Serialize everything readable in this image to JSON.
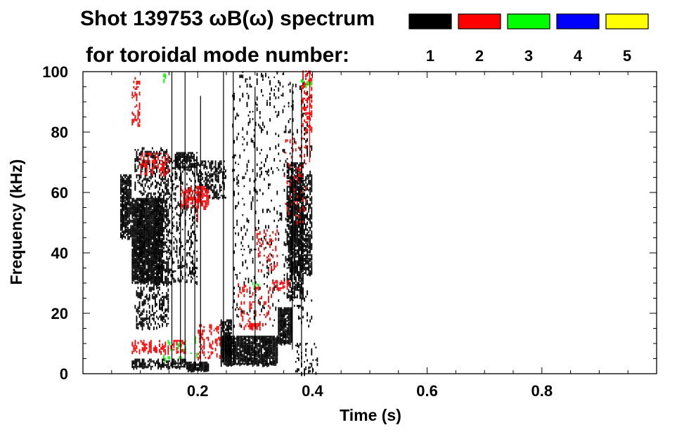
{
  "chart_data": {
    "type": "heatmap",
    "title_line1": "Shot 139753 ωB(ω) spectrum",
    "title_line2": "for toroidal mode number:",
    "xlabel": "Time (s)",
    "ylabel": "Frequency (kHz)",
    "xlim": [
      0.0,
      1.0
    ],
    "ylim": [
      0,
      100
    ],
    "x_ticks": [
      0.2,
      0.4,
      0.6,
      0.8
    ],
    "x_tick_labels": [
      "0.2",
      "0.4",
      "0.6",
      "0.8"
    ],
    "y_ticks": [
      0,
      20,
      40,
      60,
      80,
      100
    ],
    "y_tick_labels": [
      "0",
      "20",
      "40",
      "60",
      "80",
      "100"
    ],
    "legend": [
      {
        "label": "1",
        "color": "#000000"
      },
      {
        "label": "2",
        "color": "#ff0000"
      },
      {
        "label": "3",
        "color": "#00ff00"
      },
      {
        "label": "4",
        "color": "#0000ff"
      },
      {
        "label": "5",
        "color": "#ffff00"
      }
    ],
    "regions": [
      {
        "mode": "1",
        "t0": 0.065,
        "t1": 0.085,
        "f0": 45,
        "f1": 66,
        "density": 0.75
      },
      {
        "mode": "1",
        "t0": 0.085,
        "t1": 0.14,
        "f0": 30,
        "f1": 58,
        "density": 0.85
      },
      {
        "mode": "1",
        "t0": 0.09,
        "t1": 0.15,
        "f0": 15,
        "f1": 75,
        "density": 0.3
      },
      {
        "mode": "1",
        "t0": 0.14,
        "t1": 0.2,
        "f0": 30,
        "f1": 72,
        "density": 0.22
      },
      {
        "mode": "1",
        "t0": 0.16,
        "t1": 0.2,
        "f0": 68,
        "f1": 73,
        "density": 0.6
      },
      {
        "mode": "1",
        "t0": 0.085,
        "t1": 0.18,
        "f0": 2,
        "f1": 5,
        "density": 0.55
      },
      {
        "mode": "1",
        "t0": 0.18,
        "t1": 0.22,
        "f0": 1,
        "f1": 4,
        "density": 0.85
      },
      {
        "mode": "1",
        "t0": 0.2,
        "t1": 0.25,
        "f0": 58,
        "f1": 70,
        "density": 0.45
      },
      {
        "mode": "1",
        "t0": 0.24,
        "t1": 0.34,
        "f0": 3,
        "f1": 12,
        "density": 0.85
      },
      {
        "mode": "1",
        "t0": 0.24,
        "t1": 0.26,
        "f0": 6,
        "f1": 18,
        "density": 0.8
      },
      {
        "mode": "1",
        "t0": 0.26,
        "t1": 0.4,
        "f0": 15,
        "f1": 100,
        "density": 0.06
      },
      {
        "mode": "1",
        "t0": 0.34,
        "t1": 0.365,
        "f0": 10,
        "f1": 22,
        "density": 0.85
      },
      {
        "mode": "1",
        "t0": 0.355,
        "t1": 0.385,
        "f0": 25,
        "f1": 70,
        "density": 0.55
      },
      {
        "mode": "1",
        "t0": 0.36,
        "t1": 0.4,
        "f0": 33,
        "f1": 66,
        "density": 0.5
      },
      {
        "mode": "1",
        "t0": 0.37,
        "t1": 0.41,
        "f0": 0,
        "f1": 10,
        "density": 0.15
      },
      {
        "mode": "2",
        "t0": 0.085,
        "t1": 0.1,
        "f0": 82,
        "f1": 98,
        "density": 0.25
      },
      {
        "mode": "2",
        "t0": 0.1,
        "t1": 0.15,
        "f0": 66,
        "f1": 73,
        "density": 0.35
      },
      {
        "mode": "2",
        "t0": 0.085,
        "t1": 0.18,
        "f0": 7,
        "f1": 11,
        "density": 0.35
      },
      {
        "mode": "2",
        "t0": 0.17,
        "t1": 0.22,
        "f0": 55,
        "f1": 62,
        "density": 0.55
      },
      {
        "mode": "2",
        "t0": 0.2,
        "t1": 0.24,
        "f0": 5,
        "f1": 16,
        "density": 0.2
      },
      {
        "mode": "2",
        "t0": 0.27,
        "t1": 0.33,
        "f0": 15,
        "f1": 30,
        "density": 0.12
      },
      {
        "mode": "2",
        "t0": 0.29,
        "t1": 0.31,
        "f0": 15,
        "f1": 16.5,
        "density": 0.8
      },
      {
        "mode": "2",
        "t0": 0.3,
        "t1": 0.34,
        "f0": 34,
        "f1": 48,
        "density": 0.15
      },
      {
        "mode": "2",
        "t0": 0.33,
        "t1": 0.36,
        "f0": 28,
        "f1": 31,
        "density": 0.45
      },
      {
        "mode": "2",
        "t0": 0.35,
        "t1": 0.39,
        "f0": 50,
        "f1": 78,
        "density": 0.1
      },
      {
        "mode": "2",
        "t0": 0.38,
        "t1": 0.4,
        "f0": 80,
        "f1": 100,
        "density": 0.25
      },
      {
        "mode": "3",
        "t0": 0.14,
        "t1": 0.2,
        "f0": 4,
        "f1": 12,
        "density": 0.06
      },
      {
        "mode": "3",
        "t0": 0.14,
        "t1": 0.15,
        "f0": 97,
        "f1": 99,
        "density": 0.4
      },
      {
        "mode": "3",
        "t0": 0.38,
        "t1": 0.4,
        "f0": 95,
        "f1": 97,
        "density": 0.35
      },
      {
        "mode": "3",
        "t0": 0.29,
        "t1": 0.31,
        "f0": 28,
        "f1": 31,
        "density": 0.12
      }
    ],
    "streaks": [
      {
        "mode": "1",
        "t": 0.155,
        "f0": 2,
        "f1": 100
      },
      {
        "mode": "1",
        "t": 0.17,
        "f0": 3,
        "f1": 72
      },
      {
        "mode": "1",
        "t": 0.178,
        "f0": 2,
        "f1": 100
      },
      {
        "mode": "1",
        "t": 0.195,
        "f0": 2,
        "f1": 70
      },
      {
        "mode": "1",
        "t": 0.205,
        "f0": 2,
        "f1": 92
      },
      {
        "mode": "1",
        "t": 0.245,
        "f0": 4,
        "f1": 100
      },
      {
        "mode": "1",
        "t": 0.262,
        "f0": 4,
        "f1": 100
      },
      {
        "mode": "1",
        "t": 0.3,
        "f0": 5,
        "f1": 95
      },
      {
        "mode": "1",
        "t": 0.365,
        "f0": 8,
        "f1": 95
      },
      {
        "mode": "1",
        "t": 0.381,
        "f0": 2,
        "f1": 95
      },
      {
        "mode": "2",
        "t": 0.2,
        "f0": 50,
        "f1": 62
      },
      {
        "mode": "2",
        "t": 0.395,
        "f0": 70,
        "f1": 100
      }
    ]
  }
}
